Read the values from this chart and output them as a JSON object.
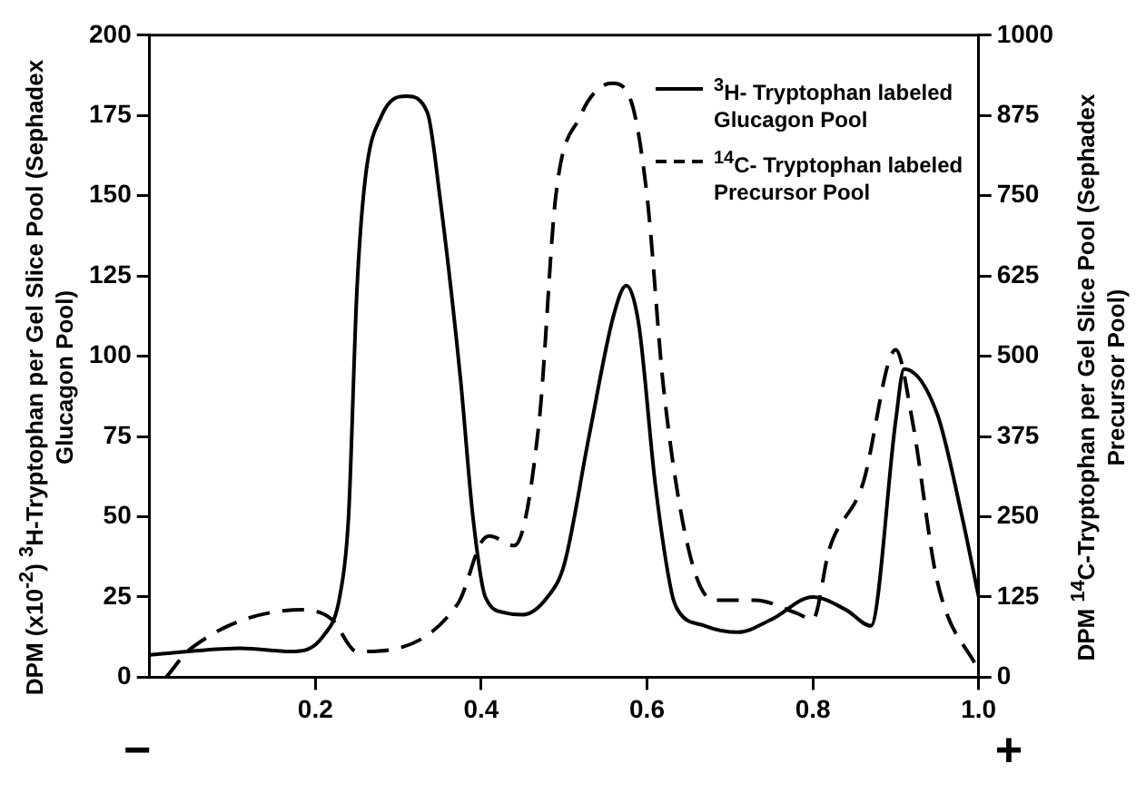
{
  "chart_data": {
    "type": "line",
    "ylabel": "DPM (x10$^{-2}$) $^{3}$H-Tryptophan per Gel Slice Pool (Sephadex Glucagon Pool)",
    "y2label": "DPM $^{14}$C-Tryptophan per Gel Slice Pool (Sephadex Precursor Pool)",
    "xlim": [
      0,
      1
    ],
    "xticks": [
      0.2,
      0.4,
      0.6,
      0.8,
      {
        "value": 1,
        "label": "1.0"
      }
    ],
    "ylim": [
      0,
      200
    ],
    "yticks": [
      0,
      25,
      50,
      75,
      100,
      125,
      150,
      175,
      200
    ],
    "y2lim": [
      0,
      1000
    ],
    "y2ticks": [
      0,
      125,
      250,
      375,
      500,
      625,
      750,
      875,
      1000
    ],
    "grid": false,
    "legend": "top right",
    "marker": "none",
    "annotations": [
      "−",
      "+"
    ],
    "series": [
      {
        "name": "$^{3}$H- Tryptophan labeled Glucagon Pool",
        "color": "#000000",
        "line_style": "solid",
        "x": [
          0,
          0.11,
          0.17,
          0.21,
          0.23,
          0.24,
          0.25,
          0.26,
          0.28,
          0.31,
          0.335,
          0.35,
          0.375,
          0.39,
          0.405,
          0.43,
          0.45,
          0.48,
          0.5,
          0.53,
          0.56,
          0.575,
          0.59,
          0.61,
          0.63,
          0.637,
          0.67,
          0.71,
          0.75,
          0.8,
          0.84,
          0.87,
          0.9,
          0.91,
          0.95,
          0.98,
          1.0
        ],
        "values": [
          7,
          9,
          8,
          13,
          26,
          50,
          120,
          155,
          175,
          181,
          176,
          150,
          93,
          50,
          25,
          20,
          19.5,
          25,
          35,
          75,
          113,
          122,
          110,
          60,
          26,
          21,
          16,
          14,
          18,
          25,
          21,
          16,
          80,
          96,
          82,
          50,
          25
        ]
      },
      {
        "name": "$^{14}$C- Tryptophan labeled Precursor Pool",
        "color": "#000000",
        "line_style": "dashed",
        "axis": "y2",
        "x": [
          0.02,
          0.05,
          0.185,
          0.22,
          0.25,
          0.372,
          0.4,
          0.41,
          0.44,
          0.47,
          0.49,
          0.52,
          0.54,
          0.558,
          0.58,
          0.6,
          0.62,
          0.65,
          0.68,
          0.73,
          0.78,
          0.8,
          0.82,
          0.86,
          0.9,
          0.92,
          0.95,
          1.0
        ],
        "values": [
          0,
          45,
          105,
          90,
          40,
          115,
          210,
          220,
          205,
          400,
          750,
          875,
          915,
          925,
          900,
          750,
          450,
          200,
          120,
          120,
          100,
          90,
          200,
          300,
          510,
          400,
          150,
          10
        ]
      }
    ]
  }
}
